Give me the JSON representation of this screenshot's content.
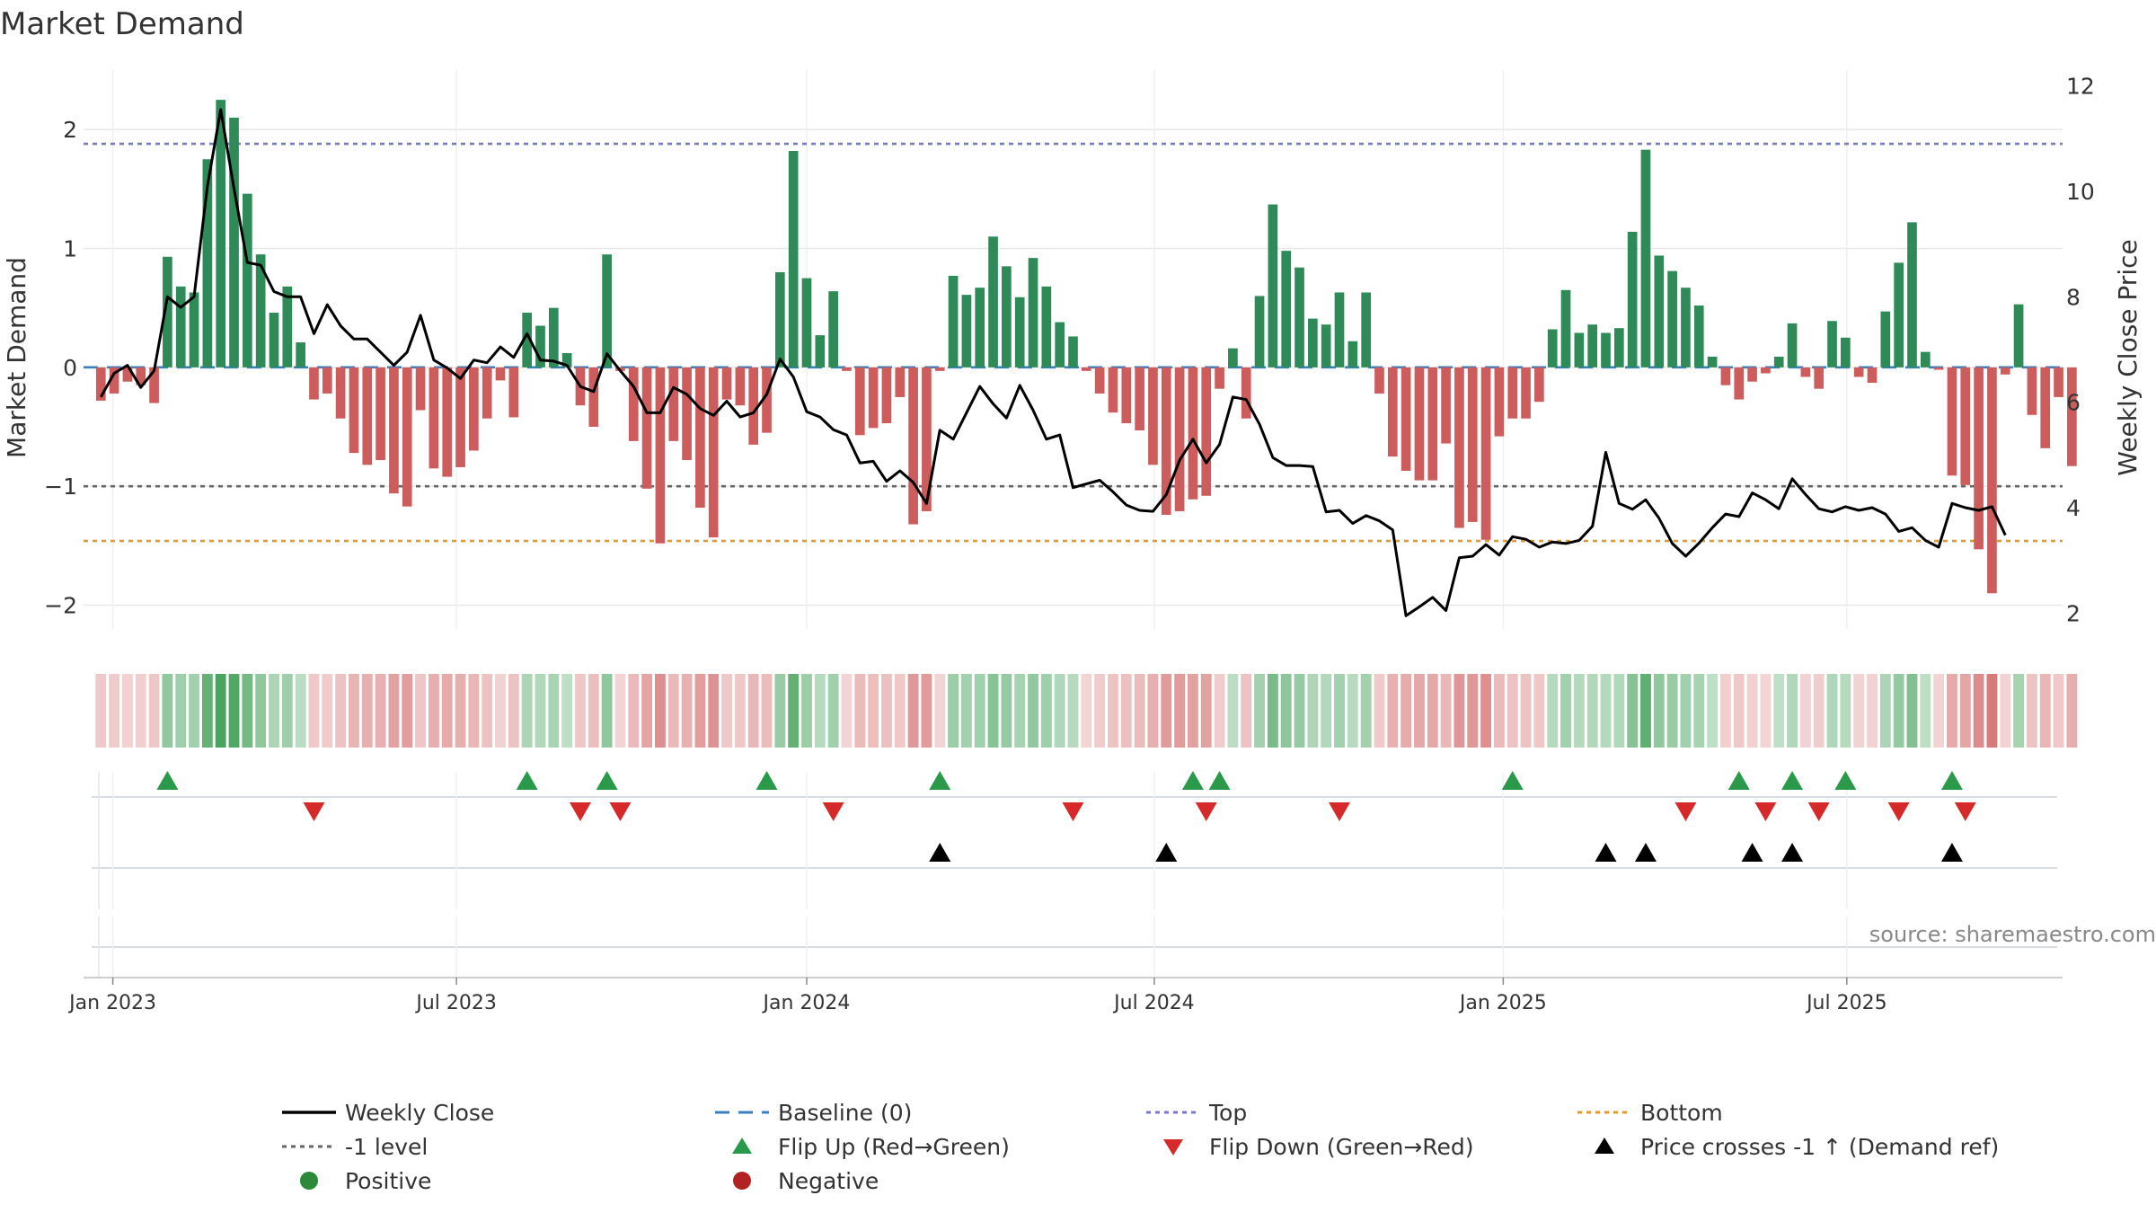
{
  "chart_data": {
    "type": "bar",
    "title": "Market Demand",
    "ylabel_left": "Market Demand",
    "ylabel_right": "Weekly Close Price",
    "ylim_left": [
      -2.2,
      2.5
    ],
    "ylim_right": [
      1.7,
      12.3
    ],
    "yticks_left": [
      {
        "v": 2,
        "label": "2"
      },
      {
        "v": 1,
        "label": "1"
      },
      {
        "v": 0,
        "label": "0"
      },
      {
        "v": -1,
        "label": "−1"
      },
      {
        "v": -2,
        "label": "−2"
      }
    ],
    "yticks_right": [
      {
        "v": 12,
        "label": "12"
      },
      {
        "v": 10,
        "label": "10"
      },
      {
        "v": 8,
        "label": "8"
      },
      {
        "v": 6,
        "label": "6"
      },
      {
        "v": 4,
        "label": "4"
      },
      {
        "v": 2,
        "label": "2"
      }
    ],
    "x_week_range": [
      -1.3,
      147.3
    ],
    "x_ticks": [
      {
        "week": 0.9,
        "label": "Jan 2023"
      },
      {
        "week": 26.7,
        "label": "Jul 2023"
      },
      {
        "week": 53.0,
        "label": "Jan 2024"
      },
      {
        "week": 79.1,
        "label": "Jul 2024"
      },
      {
        "week": 105.3,
        "label": "Jan 2025"
      },
      {
        "week": 131.1,
        "label": "Jul 2025"
      }
    ],
    "demand": [
      -0.28,
      -0.22,
      -0.12,
      -0.15,
      -0.3,
      0.93,
      0.68,
      0.63,
      1.75,
      2.25,
      2.1,
      1.46,
      0.95,
      0.46,
      0.68,
      0.21,
      -0.27,
      -0.22,
      -0.43,
      -0.72,
      -0.82,
      -0.78,
      -1.06,
      -1.17,
      -0.36,
      -0.85,
      -0.92,
      -0.84,
      -0.7,
      -0.43,
      -0.11,
      -0.42,
      0.46,
      0.35,
      0.5,
      0.12,
      -0.32,
      -0.5,
      0.95,
      -0.03,
      -0.62,
      -1.02,
      -1.48,
      -0.62,
      -0.78,
      -1.18,
      -1.43,
      -0.27,
      -0.32,
      -0.65,
      -0.55,
      0.8,
      1.82,
      0.75,
      0.27,
      0.64,
      -0.03,
      -0.57,
      -0.51,
      -0.47,
      -0.25,
      -1.32,
      -1.21,
      -0.03,
      0.77,
      0.61,
      0.67,
      1.1,
      0.85,
      0.59,
      0.92,
      0.68,
      0.38,
      0.26,
      -0.03,
      -0.22,
      -0.38,
      -0.47,
      -0.53,
      -0.82,
      -1.24,
      -1.21,
      -1.11,
      -1.08,
      -0.18,
      0.16,
      -0.43,
      0.6,
      1.37,
      0.98,
      0.84,
      0.41,
      0.36,
      0.63,
      0.22,
      0.63,
      -0.22,
      -0.75,
      -0.87,
      -0.95,
      -0.95,
      -0.64,
      -1.35,
      -1.3,
      -1.45,
      -0.58,
      -0.43,
      -0.43,
      -0.29,
      0.32,
      0.65,
      0.29,
      0.36,
      0.29,
      0.33,
      1.14,
      1.83,
      0.94,
      0.81,
      0.67,
      0.52,
      0.09,
      -0.15,
      -0.27,
      -0.12,
      -0.05,
      0.09,
      0.37,
      -0.08,
      -0.18,
      0.39,
      0.25,
      -0.08,
      -0.13,
      0.47,
      0.88,
      1.22,
      0.13,
      -0.02,
      -0.91,
      -0.99,
      -1.53,
      -1.9,
      -0.06,
      0.53,
      -0.4,
      -0.68,
      -0.25,
      -0.83
    ],
    "price": [
      6.1,
      6.55,
      6.7,
      6.28,
      6.6,
      8.0,
      7.8,
      8.0,
      10.1,
      11.55,
      10.05,
      8.65,
      8.6,
      8.1,
      8.0,
      8.0,
      7.3,
      7.85,
      7.45,
      7.2,
      7.2,
      6.95,
      6.7,
      6.95,
      7.65,
      6.8,
      6.65,
      6.45,
      6.8,
      6.75,
      7.05,
      6.85,
      7.3,
      6.8,
      6.78,
      6.7,
      6.3,
      6.2,
      6.92,
      6.6,
      6.3,
      5.8,
      5.8,
      6.28,
      6.15,
      5.88,
      5.75,
      6.02,
      5.72,
      5.8,
      6.15,
      6.82,
      6.48,
      5.82,
      5.72,
      5.48,
      5.38,
      4.85,
      4.88,
      4.5,
      4.7,
      4.48,
      4.08,
      5.47,
      5.3,
      5.8,
      6.3,
      5.97,
      5.7,
      6.32,
      5.85,
      5.3,
      5.38,
      4.38,
      4.45,
      4.52,
      4.3,
      4.05,
      3.95,
      3.93,
      4.25,
      4.9,
      5.3,
      4.85,
      5.2,
      6.1,
      6.05,
      5.58,
      4.95,
      4.8,
      4.8,
      4.78,
      3.92,
      3.95,
      3.7,
      3.85,
      3.75,
      3.58,
      1.95,
      2.12,
      2.3,
      2.05,
      3.05,
      3.08,
      3.3,
      3.1,
      3.45,
      3.4,
      3.25,
      3.35,
      3.32,
      3.38,
      3.65,
      5.05,
      4.08,
      3.97,
      4.15,
      3.8,
      3.32,
      3.08,
      3.33,
      3.62,
      3.88,
      3.83,
      4.28,
      4.15,
      3.98,
      4.55,
      4.25,
      3.98,
      3.92,
      4.02,
      3.95,
      4.0,
      3.88,
      3.55,
      3.62,
      3.38,
      3.25,
      4.08,
      4.0,
      3.95,
      4.02,
      3.48
    ],
    "demand_band_ticks": [
      0,
      16.7,
      38.4,
      50.2,
      62.8,
      76.8,
      84.5,
      94.5,
      107.4,
      118.8,
      145.9,
      147.3
    ],
    "demand_band_labels": [
      "Jan 2023",
      "Jul 2023",
      "Jan 2024",
      "Jul 2024",
      "Jan 2025",
      "Jul 2025"
    ],
    "reference_lines": [
      {
        "name": "Baseline (0)",
        "value": 0,
        "color": "#3a7fc0",
        "style": "dashed"
      },
      {
        "name": "Top",
        "value": 1.88,
        "color": "#7777cc",
        "style": "dotted"
      },
      {
        "name": "-1 level",
        "value": -1,
        "color": "#666666",
        "style": "dotted"
      },
      {
        "name": "Bottom",
        "value": -1.46,
        "color": "#e39a2c",
        "style": "dotted"
      }
    ],
    "flip_up_weeks": [
      5,
      32,
      38,
      50,
      63,
      82,
      84,
      106,
      123,
      127,
      131,
      139
    ],
    "flip_down_weeks": [
      16,
      36,
      39,
      55,
      73,
      83,
      93,
      119,
      125,
      129,
      135,
      140
    ],
    "price_cross_weeks": [
      63,
      80,
      113,
      116,
      124,
      127,
      139
    ],
    "legend": [
      {
        "label": "Weekly Close",
        "symbol": "line",
        "color": "#000000"
      },
      {
        "label": "Baseline (0)",
        "symbol": "dashed",
        "color": "#3a7fc0"
      },
      {
        "label": "Top",
        "symbol": "dotted",
        "color": "#7777cc"
      },
      {
        "label": "Bottom",
        "symbol": "dotted",
        "color": "#e39a2c"
      },
      {
        "label": "-1 level",
        "symbol": "dotted",
        "color": "#666666"
      },
      {
        "label": "Flip Up (Red→Green)",
        "symbol": "tri-up",
        "color": "#2a9a4a"
      },
      {
        "label": "Flip Down (Green→Red)",
        "symbol": "tri-down",
        "color": "#d62a2a"
      },
      {
        "label": "Price crosses -1 ↑ (Demand ref)",
        "symbol": "tri-up",
        "color": "#000000"
      },
      {
        "label": "Positive",
        "symbol": "circle",
        "color": "#2a8a3a"
      },
      {
        "label": "Negative",
        "symbol": "circle",
        "color": "#b22222"
      }
    ],
    "source": "source: sharemaestro.com",
    "colors": {
      "positive": "#2e8b57",
      "negative": "#cd5c5c",
      "price": "#000000",
      "grid": "#e8e8e8"
    }
  }
}
